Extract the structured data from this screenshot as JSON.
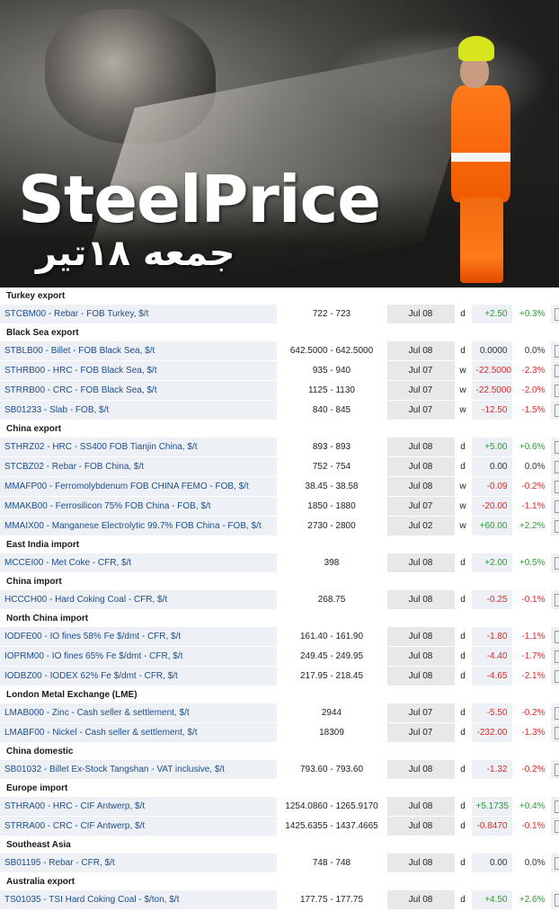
{
  "banner": {
    "title": "SteelPrice",
    "subtitle": "جمعه ۱۸تیر"
  },
  "colors": {
    "positive": "#2f9a3a",
    "negative": "#d62b2b",
    "name_text": "#1f4e8c",
    "row_shade": "#edf0f4"
  },
  "sections": [
    {
      "name": "Turkey export",
      "rows": [
        {
          "name": "STCBM00 - Rebar - FOB Turkey, $/t",
          "price": "722 - 723",
          "date": "Jul 08",
          "freq": "d",
          "change": "+2.50",
          "pct": "+0.3%",
          "trend": "pos"
        }
      ]
    },
    {
      "name": "Black Sea export",
      "rows": [
        {
          "name": "STBLB00 - Billet - FOB Black Sea, $/t",
          "price": "642.5000 - 642.5000",
          "date": "Jul 08",
          "freq": "d",
          "change": "0.0000",
          "pct": "0.0%",
          "trend": "flat"
        },
        {
          "name": "STHRB00 - HRC - FOB Black Sea, $/t",
          "price": "935 - 940",
          "date": "Jul 07",
          "freq": "w",
          "change": "-22.5000",
          "pct": "-2.3%",
          "trend": "neg"
        },
        {
          "name": "STRRB00 - CRC - FOB Black Sea, $/t",
          "price": "1125 - 1130",
          "date": "Jul 07",
          "freq": "w",
          "change": "-22.5000",
          "pct": "-2.0%",
          "trend": "neg"
        },
        {
          "name": "SB01233 - Slab - FOB, $/t",
          "price": "840 - 845",
          "date": "Jul 07",
          "freq": "w",
          "change": "-12.50",
          "pct": "-1.5%",
          "trend": "neg"
        }
      ]
    },
    {
      "name": "China export",
      "rows": [
        {
          "name": "STHRZ02 - HRC - SS400 FOB Tianjin China, $/t",
          "price": "893 - 893",
          "date": "Jul 08",
          "freq": "d",
          "change": "+5.00",
          "pct": "+0.6%",
          "trend": "pos"
        },
        {
          "name": "STCBZ02 - Rebar - FOB China, $/t",
          "price": "752 - 754",
          "date": "Jul 08",
          "freq": "d",
          "change": "0.00",
          "pct": "0.0%",
          "trend": "flat"
        },
        {
          "name": "MMAFP00 - Ferromolybdenum FOB CHINA FEMO - FOB, $/t",
          "price": "38.45 - 38.58",
          "date": "Jul 08",
          "freq": "w",
          "change": "-0.09",
          "pct": "-0.2%",
          "trend": "neg"
        },
        {
          "name": "MMAKB00 - Ferrosilicon 75% FOB China - FOB, $/t",
          "price": "1850 - 1880",
          "date": "Jul 07",
          "freq": "w",
          "change": "-20.00",
          "pct": "-1.1%",
          "trend": "neg"
        },
        {
          "name": "MMAIX00 - Manganese Electrolytic 99.7% FOB China - FOB, $/t",
          "price": "2730 - 2800",
          "date": "Jul 02",
          "freq": "w",
          "change": "+60.00",
          "pct": "+2.2%",
          "trend": "pos"
        }
      ]
    },
    {
      "name": "East India import",
      "rows": [
        {
          "name": "MCCEI00 - Met Coke - CFR, $/t",
          "price": "398",
          "date": "Jul 08",
          "freq": "d",
          "change": "+2.00",
          "pct": "+0.5%",
          "trend": "pos"
        }
      ]
    },
    {
      "name": "China import",
      "rows": [
        {
          "name": "HCCCH00 - Hard Coking Coal - CFR, $/t",
          "price": "268.75",
          "date": "Jul 08",
          "freq": "d",
          "change": "-0.25",
          "pct": "-0.1%",
          "trend": "neg"
        }
      ]
    },
    {
      "name": "North China import",
      "rows": [
        {
          "name": "IODFE00 - IO fines 58% Fe $/dmt - CFR, $/t",
          "price": "161.40 - 161.90",
          "date": "Jul 08",
          "freq": "d",
          "change": "-1.80",
          "pct": "-1.1%",
          "trend": "neg"
        },
        {
          "name": "IOPRM00 - IO fines 65% Fe $/dmt - CFR, $/t",
          "price": "249.45 - 249.95",
          "date": "Jul 08",
          "freq": "d",
          "change": "-4.40",
          "pct": "-1.7%",
          "trend": "neg"
        },
        {
          "name": "IODBZ00 - IODEX 62% Fe $/dmt - CFR, $/t",
          "price": "217.95 - 218.45",
          "date": "Jul 08",
          "freq": "d",
          "change": "-4.65",
          "pct": "-2.1%",
          "trend": "neg"
        }
      ]
    },
    {
      "name": "London Metal Exchange (LME)",
      "rows": [
        {
          "name": "LMAB000 - Zinc - Cash seller & settlement, $/t",
          "price": "2944",
          "date": "Jul 07",
          "freq": "d",
          "change": "-5.50",
          "pct": "-0.2%",
          "trend": "neg"
        },
        {
          "name": "LMABF00 - Nickel - Cash seller & settlement, $/t",
          "price": "18309",
          "date": "Jul 07",
          "freq": "d",
          "change": "-232.00",
          "pct": "-1.3%",
          "trend": "neg"
        }
      ]
    },
    {
      "name": "China domestic",
      "rows": [
        {
          "name": "SB01032 - Billet Ex-Stock Tangshan - VAT inclusive, $/t",
          "price": "793.60 - 793.60",
          "date": "Jul 08",
          "freq": "d",
          "change": "-1.32",
          "pct": "-0.2%",
          "trend": "neg"
        }
      ]
    },
    {
      "name": "Europe import",
      "rows": [
        {
          "name": "STHRA00 - HRC - CIF Antwerp, $/t",
          "price": "1254.0860 - 1265.9170",
          "date": "Jul 08",
          "freq": "d",
          "change": "+5.1735",
          "pct": "+0.4%",
          "trend": "pos"
        },
        {
          "name": "STRRA00 - CRC - CIF Antwerp, $/t",
          "price": "1425.6355 - 1437.4665",
          "date": "Jul 08",
          "freq": "d",
          "change": "-0.8470",
          "pct": "-0.1%",
          "trend": "neg"
        }
      ]
    },
    {
      "name": "Southeast Asia",
      "rows": [
        {
          "name": "SB01195 - Rebar - CFR, $/t",
          "price": "748 - 748",
          "date": "Jul 08",
          "freq": "d",
          "change": "0.00",
          "pct": "0.0%",
          "trend": "flat"
        }
      ]
    },
    {
      "name": "Australia export",
      "rows": [
        {
          "name": "TS01035 - TSI Hard Coking Coal - $/ton, $/t",
          "price": "177.75 - 177.75",
          "date": "Jul 08",
          "freq": "d",
          "change": "+4.50",
          "pct": "+2.6%",
          "trend": "pos"
        }
      ]
    }
  ]
}
